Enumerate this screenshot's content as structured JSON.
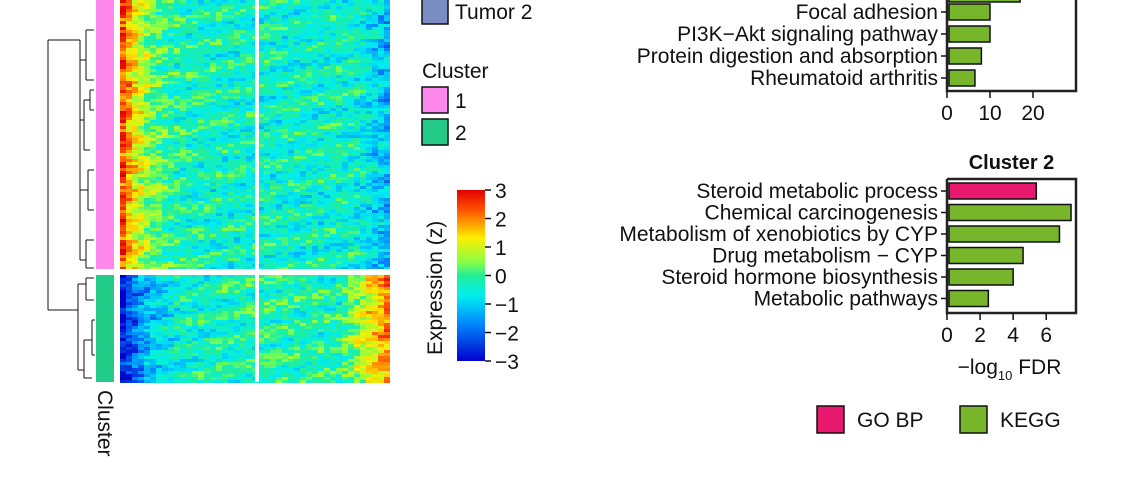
{
  "legend": {
    "group_partial_label": "Tumor 2",
    "group_partial_color": "#7a8cc4",
    "cluster_title": "Cluster",
    "clusters": [
      {
        "label": "1",
        "color": "#ff88ee"
      },
      {
        "label": "2",
        "color": "#22cc88"
      }
    ],
    "colorbar": {
      "title": "Expression (z)",
      "ticks": [
        "3",
        "2",
        "1",
        "0",
        "−1",
        "−2",
        "−3"
      ],
      "min": -3,
      "max": 3
    }
  },
  "heatmap": {
    "row_annotation_label": "Cluster",
    "cluster_colors": {
      "1": "#ff88ee",
      "2": "#22cc88"
    }
  },
  "chart_data": [
    {
      "type": "bar",
      "orientation": "horizontal",
      "title": "",
      "categories": [
        "Focal adhesion",
        "PI3K−Akt signaling pathway",
        "Protein digestion and absorption",
        "Rheumatoid arthritis"
      ],
      "values": [
        10,
        10,
        8,
        6.5
      ],
      "sources": [
        "KEGG",
        "KEGG",
        "KEGG",
        "KEGG"
      ],
      "xlim": [
        0,
        30
      ],
      "xticks": [
        "0",
        "10",
        "20"
      ],
      "xlabel": "",
      "partial_top_bar_value": 17
    },
    {
      "type": "bar",
      "orientation": "horizontal",
      "title": "Cluster 2",
      "categories": [
        "Steroid metabolic process",
        "Chemical carcinogenesis",
        "Metabolism of xenobiotics by CYP",
        "Drug metabolism − CYP",
        "Steroid hormone biosynthesis",
        "Metabolic pathways"
      ],
      "values": [
        5.4,
        7.5,
        6.8,
        4.6,
        4.0,
        2.5
      ],
      "sources": [
        "GO BP",
        "KEGG",
        "KEGG",
        "KEGG",
        "KEGG",
        "KEGG"
      ],
      "xlim": [
        0,
        7.8
      ],
      "xticks": [
        "0",
        "2",
        "4",
        "6"
      ],
      "xlabel_main": "−log",
      "xlabel_sub": "10",
      "xlabel_tail": " FDR"
    }
  ],
  "bar_legend": [
    {
      "label": "GO BP",
      "color": "#e8186e"
    },
    {
      "label": "KEGG",
      "color": "#77b52b"
    }
  ]
}
